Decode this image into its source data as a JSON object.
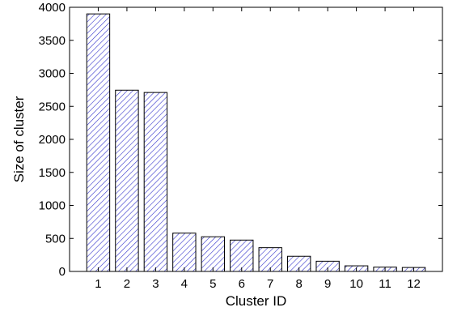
{
  "chart_data": {
    "type": "bar",
    "title": "",
    "xlabel": "Cluster ID",
    "ylabel": "Size of cluster",
    "categories": [
      "1",
      "2",
      "3",
      "4",
      "5",
      "6",
      "7",
      "8",
      "9",
      "10",
      "11",
      "12"
    ],
    "values": [
      3900,
      2745,
      2710,
      580,
      525,
      475,
      360,
      230,
      155,
      85,
      65,
      60
    ],
    "ylim": [
      0,
      4000
    ],
    "yticks": [
      0,
      500,
      1000,
      1500,
      2000,
      2500,
      3000,
      3500,
      4000
    ],
    "grid": false,
    "bar_fill": "hatched",
    "bar_hatch_color": "#3333cc",
    "bar_edge_color": "#000000"
  }
}
